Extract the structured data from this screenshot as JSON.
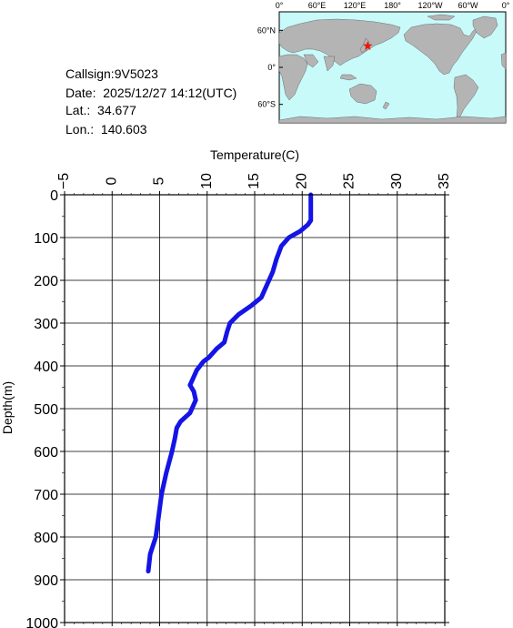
{
  "station": {
    "callsign_label": "Callsign:",
    "callsign": "9V5023",
    "date_label": "Date:",
    "date": "2025/12/27 14:12(UTC)",
    "lat_label": "Lat.:",
    "lat": "34.677",
    "lon_label": "Lon.:",
    "lon": "140.603"
  },
  "map": {
    "top_labels": [
      "0°",
      "60°E",
      "120°E",
      "180°",
      "120°W",
      "60°W",
      "0°"
    ],
    "side_labels": [
      "60°N",
      "0°",
      "60°S"
    ],
    "ocean_color": "#c8fafa",
    "land_color": "#b4b4b4",
    "marker_color": "#e8190f",
    "marker_lon": 140.603,
    "marker_lat": 34.677
  },
  "chart_data": {
    "type": "line",
    "title": "",
    "xlabel": "Temperature(C)",
    "ylabel": "Depth(m)",
    "xlim": [
      -5,
      35
    ],
    "ylim": [
      0,
      1000
    ],
    "x_ticks": [
      -5,
      0,
      5,
      10,
      15,
      20,
      25,
      30,
      35
    ],
    "y_ticks": [
      0,
      100,
      200,
      300,
      400,
      500,
      600,
      700,
      800,
      900,
      1000
    ],
    "x_axis_position": "top",
    "y_inverted": true,
    "grid": true,
    "series": [
      {
        "color": "#1414e6",
        "depth": [
          0,
          60,
          70,
          85,
          100,
          120,
          150,
          180,
          200,
          240,
          260,
          280,
          300,
          320,
          345,
          360,
          380,
          390,
          410,
          430,
          445,
          460,
          480,
          510,
          530,
          545,
          570,
          600,
          650,
          700,
          750,
          800,
          820,
          840,
          880
        ],
        "temperature": [
          20.9,
          20.9,
          20.6,
          19.8,
          18.6,
          17.8,
          17.3,
          16.9,
          16.5,
          15.7,
          14.6,
          13.3,
          12.4,
          12.1,
          11.8,
          11.0,
          10.2,
          9.6,
          8.9,
          8.5,
          8.2,
          8.6,
          8.8,
          8.2,
          7.2,
          6.8,
          6.6,
          6.3,
          5.7,
          5.2,
          4.9,
          4.6,
          4.3,
          4.0,
          3.8
        ]
      }
    ]
  }
}
